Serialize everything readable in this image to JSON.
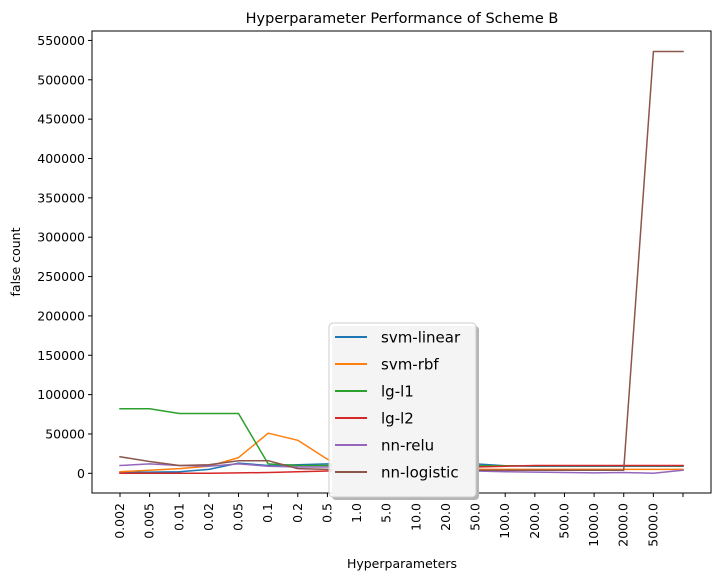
{
  "chart_data": {
    "type": "line",
    "title": "Hyperparameter Performance of Scheme B",
    "xlabel": "Hyperparameters",
    "ylabel": "false count",
    "categories": [
      "0.002",
      "0.005",
      "0.01",
      "0.02",
      "0.05",
      "0.1",
      "0.2",
      "0.5",
      "1.0",
      "5.0",
      "10.0",
      "20.0",
      "50.0",
      "100.0",
      "200.0",
      "500.0",
      "1000.0",
      "2000.0",
      "5000.0",
      ""
    ],
    "yticks": [
      0,
      50000,
      100000,
      150000,
      200000,
      250000,
      300000,
      350000,
      400000,
      450000,
      500000,
      550000
    ],
    "ylim": [
      -25000,
      562000
    ],
    "grid": false,
    "legend_position": "lower center",
    "series": [
      {
        "name": "svm-linear",
        "color": "#1f77b4",
        "values": [
          1000,
          1500,
          2000,
          5000,
          13000,
          10000,
          11000,
          12000,
          11000,
          10000,
          9500,
          9000,
          12000,
          9500,
          9000,
          9000,
          9000,
          9000,
          9000,
          9000
        ]
      },
      {
        "name": "svm-rbf",
        "color": "#ff7f0e",
        "values": [
          2000,
          4000,
          6000,
          9000,
          20000,
          51000,
          42000,
          18000,
          5000,
          5000,
          5000,
          5000,
          5000,
          5000,
          5000,
          5000,
          5000,
          5000,
          5000,
          5000
        ]
      },
      {
        "name": "lg-l1",
        "color": "#2ca02c",
        "values": [
          82000,
          82000,
          76000,
          76000,
          76000,
          12000,
          10000,
          10000,
          9500,
          9500,
          9500,
          9500,
          9500,
          9500,
          9500,
          9500,
          9500,
          9500,
          9500,
          9500
        ]
      },
      {
        "name": "lg-l2",
        "color": "#d62728",
        "values": [
          0,
          0,
          0,
          200,
          500,
          1000,
          2000,
          3000,
          4000,
          5000,
          6000,
          7000,
          8000,
          9000,
          10000,
          10000,
          10000,
          10000,
          10000,
          10000
        ]
      },
      {
        "name": "nn-relu",
        "color": "#9467bd",
        "values": [
          10000,
          12000,
          10000,
          9000,
          12000,
          9000,
          8000,
          8000,
          7000,
          7000,
          5000,
          3000,
          3000,
          2000,
          1500,
          1000,
          500,
          1000,
          0,
          4000
        ]
      },
      {
        "name": "nn-logistic",
        "color": "#8c564b",
        "values": [
          21000,
          15000,
          10000,
          11000,
          16000,
          16000,
          6000,
          5000,
          4000,
          4000,
          4000,
          4000,
          4000,
          4000,
          4000,
          4000,
          4000,
          4000,
          536000,
          536000
        ]
      }
    ]
  }
}
